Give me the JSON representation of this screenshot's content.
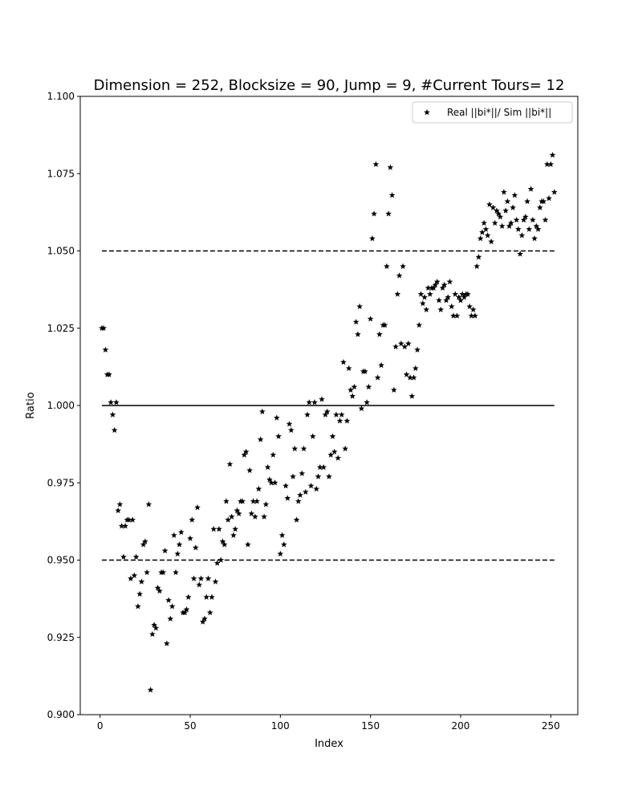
{
  "chart_data": {
    "type": "scatter",
    "title": "Dimension = 252, Blocksize = 90, Jump = 9, #Current Tours= 12",
    "xlabel": "Index",
    "ylabel": "Ratio",
    "xlim": [
      -11,
      265
    ],
    "ylim": [
      0.9,
      1.1
    ],
    "xticks": [
      "0",
      "50",
      "100",
      "150",
      "200",
      "250"
    ],
    "yticks": [
      "0.900",
      "0.925",
      "0.950",
      "0.975",
      "1.000",
      "1.025",
      "1.050",
      "1.075",
      "1.100"
    ],
    "grid": false,
    "legend_position": "top-right",
    "reference_lines": [
      {
        "y": 1.05,
        "style": "dashed",
        "x_range": [
          1,
          252
        ]
      },
      {
        "y": 1.0,
        "style": "solid",
        "x_range": [
          1,
          252
        ]
      },
      {
        "y": 0.95,
        "style": "dashed",
        "x_range": [
          1,
          252
        ]
      }
    ],
    "series": [
      {
        "name": "Real ||bi*||/ Sim ||bi*||",
        "marker": "star",
        "color": "#000000",
        "x": [
          1,
          2,
          3,
          4,
          5,
          6,
          7,
          8,
          9,
          10,
          11,
          12,
          13,
          14,
          15,
          16,
          17,
          18,
          19,
          20,
          21,
          22,
          23,
          24,
          25,
          26,
          27,
          28,
          29,
          30,
          31,
          32,
          33,
          34,
          35,
          36,
          37,
          38,
          39,
          40,
          41,
          42,
          43,
          44,
          45,
          46,
          47,
          48,
          49,
          50,
          51,
          52,
          53,
          54,
          55,
          56,
          57,
          58,
          59,
          60,
          61,
          62,
          63,
          64,
          65,
          66,
          67,
          68,
          69,
          70,
          71,
          72,
          73,
          74,
          75,
          76,
          77,
          78,
          79,
          80,
          81,
          82,
          83,
          84,
          85,
          86,
          87,
          88,
          89,
          90,
          91,
          92,
          93,
          94,
          95,
          96,
          97,
          98,
          99,
          100,
          101,
          102,
          103,
          104,
          105,
          106,
          107,
          108,
          109,
          110,
          111,
          112,
          113,
          114,
          115,
          116,
          117,
          118,
          119,
          120,
          121,
          122,
          123,
          124,
          125,
          126,
          127,
          128,
          129,
          130,
          131,
          132,
          133,
          134,
          135,
          136,
          137,
          138,
          139,
          140,
          141,
          142,
          143,
          144,
          145,
          146,
          147,
          148,
          149,
          150,
          151,
          152,
          153,
          154,
          155,
          156,
          157,
          158,
          159,
          160,
          161,
          162,
          163,
          164,
          165,
          166,
          167,
          168,
          169,
          170,
          171,
          172,
          173,
          174,
          175,
          176,
          177,
          178,
          179,
          180,
          181,
          182,
          183,
          184,
          185,
          186,
          187,
          188,
          189,
          190,
          191,
          192,
          193,
          194,
          195,
          196,
          197,
          198,
          199,
          200,
          201,
          202,
          203,
          204,
          205,
          206,
          207,
          208,
          209,
          210,
          211,
          212,
          213,
          214,
          215,
          216,
          217,
          218,
          219,
          220,
          221,
          222,
          223,
          224,
          225,
          226,
          227,
          228,
          229,
          230,
          231,
          232,
          233,
          234,
          235,
          236,
          237,
          238,
          239,
          240,
          241,
          242,
          243,
          244,
          245,
          246,
          247,
          248,
          249,
          250,
          251,
          252
        ],
        "y": [
          1.025,
          1.025,
          1.018,
          1.01,
          1.01,
          1.001,
          0.997,
          0.992,
          1.001,
          0.966,
          0.968,
          0.961,
          0.951,
          0.961,
          0.963,
          0.963,
          0.944,
          0.963,
          0.945,
          0.951,
          0.935,
          0.939,
          0.943,
          0.955,
          0.956,
          0.946,
          0.968,
          0.908,
          0.926,
          0.929,
          0.928,
          0.941,
          0.94,
          0.946,
          0.946,
          0.953,
          0.923,
          0.937,
          0.931,
          0.935,
          0.958,
          0.946,
          0.952,
          0.955,
          0.959,
          0.933,
          0.933,
          0.934,
          0.938,
          0.957,
          0.963,
          0.944,
          0.954,
          0.967,
          0.942,
          0.944,
          0.93,
          0.931,
          0.938,
          0.944,
          0.933,
          0.938,
          0.96,
          0.943,
          0.949,
          0.96,
          0.95,
          0.956,
          0.955,
          0.969,
          0.963,
          0.981,
          0.964,
          0.958,
          0.96,
          0.966,
          0.965,
          0.969,
          0.969,
          0.984,
          0.985,
          0.955,
          0.979,
          0.965,
          0.969,
          0.964,
          0.969,
          0.973,
          0.989,
          0.998,
          0.964,
          0.968,
          0.98,
          0.976,
          0.975,
          0.984,
          0.975,
          0.996,
          0.99,
          0.952,
          0.958,
          0.955,
          0.974,
          0.97,
          0.994,
          0.992,
          0.977,
          0.986,
          0.963,
          0.969,
          0.971,
          0.978,
          0.986,
          0.972,
          0.997,
          1.001,
          0.974,
          0.99,
          1.001,
          0.973,
          0.977,
          0.98,
          1.002,
          0.98,
          0.997,
          0.998,
          0.977,
          0.984,
          0.99,
          0.985,
          0.997,
          0.983,
          0.995,
          0.997,
          1.014,
          0.986,
          0.995,
          1.012,
          1.005,
          1.003,
          1.006,
          1.027,
          1.023,
          1.032,
          0.999,
          1.011,
          1.011,
          1.001,
          1.006,
          1.028,
          1.054,
          1.062,
          1.078,
          1.009,
          1.023,
          1.013,
          1.026,
          1.026,
          1.045,
          1.062,
          1.077,
          1.068,
          1.005,
          1.019,
          1.036,
          1.042,
          1.02,
          1.045,
          1.019,
          1.01,
          1.02,
          1.009,
          1.003,
          1.009,
          1.012,
          1.018,
          1.026,
          1.036,
          1.033,
          1.035,
          1.031,
          1.038,
          1.036,
          1.038,
          1.038,
          1.039,
          1.04,
          1.034,
          1.031,
          1.038,
          1.039,
          1.034,
          1.035,
          1.04,
          1.032,
          1.029,
          1.036,
          1.029,
          1.035,
          1.034,
          1.036,
          1.035,
          1.036,
          1.036,
          1.032,
          1.029,
          1.031,
          1.029,
          1.045,
          1.048,
          1.054,
          1.056,
          1.059,
          1.057,
          1.055,
          1.065,
          1.053,
          1.064,
          1.059,
          1.063,
          1.062,
          1.061,
          1.058,
          1.069,
          1.063,
          1.066,
          1.058,
          1.059,
          1.064,
          1.068,
          1.06,
          1.057,
          1.049,
          1.055,
          1.06,
          1.061,
          1.066,
          1.057,
          1.07,
          1.06,
          1.054,
          1.058,
          1.057,
          1.064,
          1.066,
          1.066,
          1.06,
          1.078,
          1.067,
          1.078,
          1.081,
          1.069
        ]
      }
    ]
  }
}
